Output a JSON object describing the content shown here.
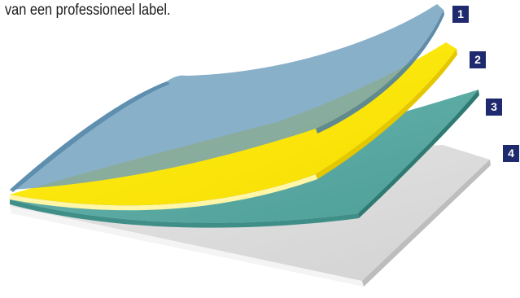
{
  "caption": "van een professioneel label.",
  "layers": [
    {
      "number": "1",
      "color": "#7fa9c6"
    },
    {
      "number": "2",
      "color": "#ffe600"
    },
    {
      "number": "3",
      "color": "#5aa9a3"
    },
    {
      "number": "4",
      "color": "#d9d9d9"
    }
  ]
}
